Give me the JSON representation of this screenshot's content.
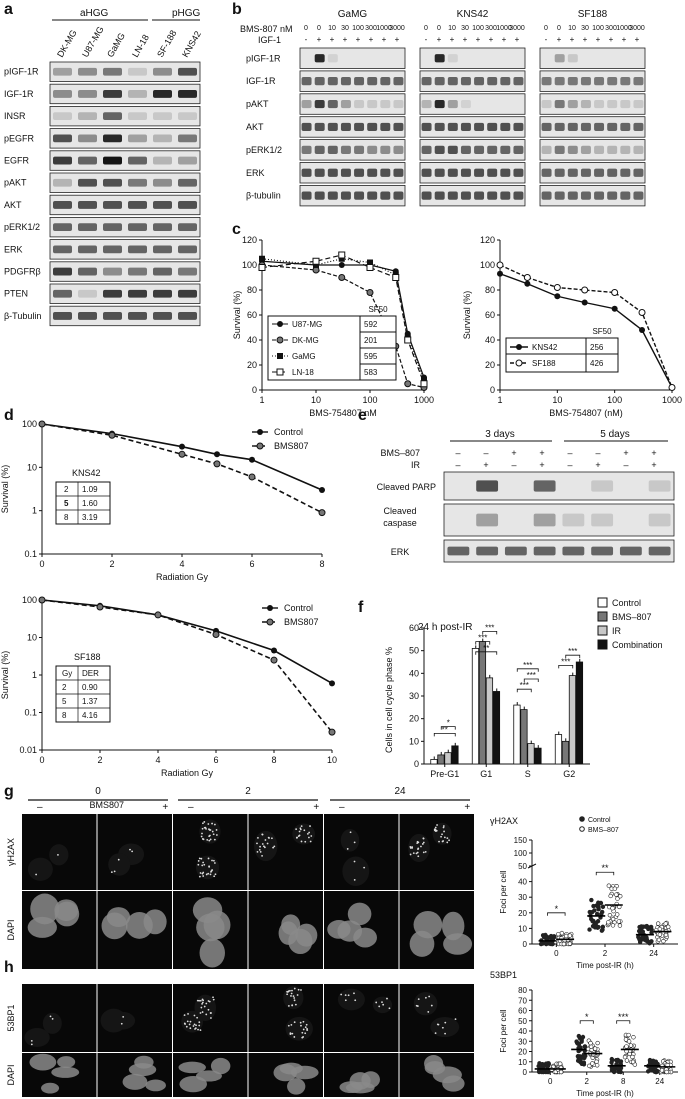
{
  "panels": {
    "a": {
      "label": "a",
      "groups": [
        "aHGG",
        "pHGG"
      ],
      "lanes": [
        "DK-MG",
        "U87-MG",
        "GaMG",
        "LN-18",
        "SF-188",
        "KNS42"
      ],
      "rows": [
        "pIGF-1R",
        "IGF-1R",
        "INSR",
        "pEGFR",
        "EGFR",
        "pAKT",
        "AKT",
        "pERK1/2",
        "ERK",
        "PDGFRβ",
        "PTEN",
        "β-Tubulin"
      ]
    },
    "b": {
      "label": "b",
      "cell_lines": [
        "GaMG",
        "KNS42",
        "SF188"
      ],
      "dose_label": "BMS-807 nM",
      "igf_label": "IGF-1",
      "doses": [
        "0",
        "0",
        "10",
        "30",
        "100",
        "300",
        "1000",
        "3000"
      ],
      "igf": [
        "-",
        "+",
        "+",
        "+",
        "+",
        "+",
        "+",
        "+"
      ],
      "rows": [
        "pIGF-1R",
        "IGF-1R",
        "pAKT",
        "AKT",
        "pERK1/2",
        "ERK",
        "β-tubulin"
      ]
    },
    "c": {
      "label": "c",
      "left": {
        "ylabel": "Survival (%)",
        "xlabel": "BMS-754807 nM",
        "yticks": [
          "0",
          "20",
          "40",
          "60",
          "80",
          "100",
          "120"
        ],
        "xticks": [
          "1",
          "10",
          "100",
          "1000"
        ],
        "table_header": "SF50",
        "table": [
          [
            "U87-MG",
            "592"
          ],
          [
            "DK-MG",
            "201"
          ],
          [
            "GaMG",
            "595"
          ],
          [
            "LN-18",
            "583"
          ]
        ]
      },
      "right": {
        "ylabel": "Survival (%)",
        "xlabel": "BMS-754807 (nM)",
        "yticks": [
          "0",
          "20",
          "40",
          "60",
          "80",
          "100",
          "120"
        ],
        "xticks": [
          "1",
          "10",
          "100",
          "1000"
        ],
        "table_header": "SF50",
        "table": [
          [
            "KNS42",
            "256"
          ],
          [
            "SF188",
            "426"
          ]
        ]
      }
    },
    "d": {
      "label": "d",
      "top": {
        "ylabel": "Survival (%)",
        "xlabel": "Radiation Gy",
        "yticks": [
          "0.1",
          "1",
          "10",
          "100"
        ],
        "xticks": [
          "0",
          "2",
          "4",
          "6",
          "8"
        ],
        "legend": [
          "Control",
          "BMS807"
        ],
        "cell": "KNS42",
        "table_header": [
          "Gy",
          "DER"
        ],
        "table": [
          [
            "2",
            "1.09"
          ],
          [
            "5",
            "1.60"
          ],
          [
            "8",
            "3.19"
          ]
        ]
      },
      "bottom": {
        "ylabel": "Survival (%)",
        "xlabel": "Radiation Gy",
        "yticks": [
          "0.01",
          "0.1",
          "1",
          "10",
          "100"
        ],
        "xticks": [
          "0",
          "2",
          "4",
          "6",
          "8",
          "10"
        ],
        "legend": [
          "Control",
          "BMS807"
        ],
        "cell": "SF188",
        "table_header": [
          "Gy",
          "DER"
        ],
        "table": [
          [
            "2",
            "0.90"
          ],
          [
            "5",
            "1.37"
          ],
          [
            "8",
            "4.16"
          ]
        ]
      }
    },
    "e": {
      "label": "e",
      "times": [
        "3 days",
        "5 days"
      ],
      "row_labels": [
        "BMS–807",
        "IR"
      ],
      "bms": [
        "–",
        "–",
        "+",
        "+",
        "–",
        "–",
        "+",
        "+"
      ],
      "ir": [
        "–",
        "+",
        "–",
        "+",
        "–",
        "+",
        "–",
        "+"
      ],
      "rows": [
        "Cleaved PARP",
        "Cleaved caspase 3",
        "ERK"
      ]
    },
    "f": {
      "label": "f",
      "title": "24 h post-IR",
      "ylabel": "Cells in cell cycle phase %",
      "yticks": [
        "0",
        "10",
        "20",
        "30",
        "40",
        "50",
        "60"
      ],
      "legend": [
        "Control",
        "BMS–807",
        "IR",
        "Combination"
      ],
      "stars": [
        "**",
        "*",
        "**",
        "***",
        "***",
        "***",
        "***",
        "***",
        "***",
        "***"
      ]
    },
    "g": {
      "label": "g",
      "bms_label": "BMS807",
      "times": [
        "0",
        "2",
        "24"
      ],
      "signs": [
        "–",
        "+",
        "–",
        "+",
        "–",
        "+"
      ],
      "rows": [
        "γH2AX",
        "DAPI"
      ],
      "plot": {
        "title": "γH2AX",
        "legend": [
          "Control",
          "BMS–807"
        ],
        "ylabel": "Foci per cell",
        "xlabel": "Time post-IR (h)",
        "yticks": [
          "0",
          "10",
          "20",
          "30",
          "40",
          "50",
          "100",
          "150"
        ],
        "xticks": [
          "0",
          "2",
          "24"
        ],
        "stars": [
          "*",
          "**"
        ]
      }
    },
    "h": {
      "label": "h",
      "rows": [
        "53BP1",
        "DAPI"
      ],
      "plot": {
        "title": "53BP1",
        "ylabel": "Foci per cell",
        "xlabel": "Time post-IR (h)",
        "yticks": [
          "0",
          "10",
          "20",
          "30",
          "40",
          "50",
          "60",
          "70",
          "80"
        ],
        "xticks": [
          "0",
          "2",
          "8",
          "24"
        ],
        "stars": [
          "*",
          "***"
        ]
      }
    }
  },
  "chart_data": [
    {
      "type": "line",
      "panel": "c-left",
      "x": [
        1,
        10,
        30,
        100,
        300,
        500,
        1000
      ],
      "series": [
        {
          "name": "U87-MG",
          "values": [
            103,
            100,
            100,
            100,
            95,
            45,
            10
          ]
        },
        {
          "name": "DK-MG",
          "values": [
            100,
            96,
            90,
            78,
            35,
            5,
            2
          ]
        },
        {
          "name": "GaMG",
          "values": [
            105,
            100,
            105,
            102,
            92,
            42,
            8
          ]
        },
        {
          "name": "LN-18",
          "values": [
            98,
            103,
            108,
            98,
            90,
            40,
            5
          ]
        }
      ],
      "xscale": "log",
      "xlim": [
        1,
        1000
      ],
      "ylim": [
        0,
        120
      ],
      "xlabel": "BMS-754807 nM",
      "ylabel": "Survival (%)"
    },
    {
      "type": "line",
      "panel": "c-right",
      "x": [
        1,
        3,
        10,
        30,
        100,
        300,
        1000
      ],
      "series": [
        {
          "name": "KNS42",
          "values": [
            93,
            85,
            75,
            70,
            65,
            48,
            2
          ]
        },
        {
          "name": "SF188",
          "values": [
            100,
            90,
            82,
            80,
            78,
            62,
            2
          ]
        }
      ],
      "xscale": "log",
      "xlim": [
        1,
        1000
      ],
      "ylim": [
        0,
        120
      ],
      "xlabel": "BMS-754807 (nM)",
      "ylabel": "Survival (%)"
    },
    {
      "type": "line",
      "panel": "d-top",
      "x": [
        0,
        2,
        4,
        5,
        6,
        8
      ],
      "series": [
        {
          "name": "Control",
          "values": [
            100,
            60,
            30,
            20,
            15,
            3
          ]
        },
        {
          "name": "BMS807",
          "values": [
            100,
            55,
            20,
            12,
            6,
            0.9
          ]
        }
      ],
      "yscale": "log",
      "xlim": [
        0,
        8
      ],
      "ylim": [
        0.1,
        100
      ],
      "xlabel": "Radiation Gy",
      "ylabel": "Survival (%)"
    },
    {
      "type": "line",
      "panel": "d-bottom",
      "x": [
        0,
        2,
        4,
        6,
        8,
        10
      ],
      "series": [
        {
          "name": "Control",
          "values": [
            100,
            70,
            40,
            15,
            4.5,
            0.6
          ]
        },
        {
          "name": "BMS807",
          "values": [
            100,
            65,
            40,
            12,
            2.5,
            0.03
          ]
        }
      ],
      "yscale": "log",
      "xlim": [
        0,
        10
      ],
      "ylim": [
        0.01,
        100
      ],
      "xlabel": "Radiation Gy",
      "ylabel": "Survival (%)"
    },
    {
      "type": "bar",
      "panel": "f",
      "categories": [
        "Pre-G1",
        "G1",
        "S",
        "G2"
      ],
      "series": [
        {
          "name": "Control",
          "values": [
            2,
            51,
            26,
            13
          ]
        },
        {
          "name": "BMS–807",
          "values": [
            4,
            54,
            24,
            10
          ]
        },
        {
          "name": "IR",
          "values": [
            5,
            38,
            9,
            39
          ]
        },
        {
          "name": "Combination",
          "values": [
            8,
            32,
            7,
            45
          ]
        }
      ],
      "ylim": [
        0,
        60
      ],
      "ylabel": "Cells in cell cycle phase %"
    },
    {
      "type": "scatter",
      "panel": "g",
      "categories": [
        "0",
        "2",
        "24"
      ],
      "series": [
        {
          "name": "Control",
          "medians": [
            2,
            18,
            6
          ]
        },
        {
          "name": "BMS–807",
          "medians": [
            3,
            25,
            8
          ]
        }
      ],
      "xlabel": "Time post-IR (h)",
      "ylabel": "Foci per cell"
    },
    {
      "type": "scatter",
      "panel": "h",
      "categories": [
        "0",
        "2",
        "8",
        "24"
      ],
      "series": [
        {
          "name": "Control",
          "medians": [
            3,
            22,
            6,
            6
          ]
        },
        {
          "name": "BMS–807",
          "medians": [
            3,
            18,
            22,
            5
          ]
        }
      ],
      "ylim": [
        0,
        80
      ],
      "xlabel": "Time post-IR (h)",
      "ylabel": "Foci per cell"
    }
  ]
}
